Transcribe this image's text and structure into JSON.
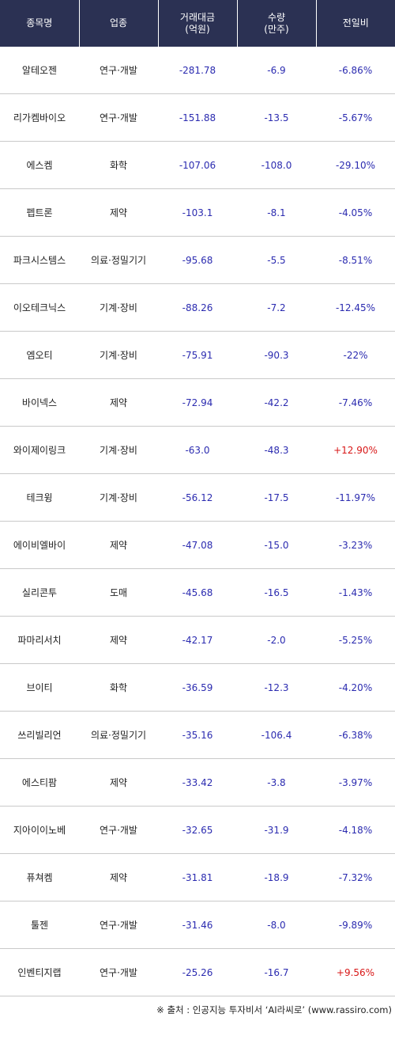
{
  "headers": {
    "name": "종목명",
    "sector": "업종",
    "amount_line1": "거래대금",
    "amount_line2": "(억원)",
    "volume_line1": "수량",
    "volume_line2": "(만주)",
    "change": "전일비"
  },
  "rows": [
    {
      "name": "알테오젠",
      "sector": "연구·개발",
      "amount": "-281.78",
      "volume": "-6.9",
      "change": "-6.86%"
    },
    {
      "name": "리가켐바이오",
      "sector": "연구·개발",
      "amount": "-151.88",
      "volume": "-13.5",
      "change": "-5.67%"
    },
    {
      "name": "에스켐",
      "sector": "화학",
      "amount": "-107.06",
      "volume": "-108.0",
      "change": "-29.10%"
    },
    {
      "name": "펩트론",
      "sector": "제약",
      "amount": "-103.1",
      "volume": "-8.1",
      "change": "-4.05%"
    },
    {
      "name": "파크시스템스",
      "sector": "의료·정밀기기",
      "amount": "-95.68",
      "volume": "-5.5",
      "change": "-8.51%"
    },
    {
      "name": "이오테크닉스",
      "sector": "기계·장비",
      "amount": "-88.26",
      "volume": "-7.2",
      "change": "-12.45%"
    },
    {
      "name": "엠오티",
      "sector": "기계·장비",
      "amount": "-75.91",
      "volume": "-90.3",
      "change": "-22%"
    },
    {
      "name": "바이넥스",
      "sector": "제약",
      "amount": "-72.94",
      "volume": "-42.2",
      "change": "-7.46%"
    },
    {
      "name": "와이제이링크",
      "sector": "기계·장비",
      "amount": "-63.0",
      "volume": "-48.3",
      "change": "+12.90%"
    },
    {
      "name": "테크윙",
      "sector": "기계·장비",
      "amount": "-56.12",
      "volume": "-17.5",
      "change": "-11.97%"
    },
    {
      "name": "에이비엘바이",
      "sector": "제약",
      "amount": "-47.08",
      "volume": "-15.0",
      "change": "-3.23%"
    },
    {
      "name": "실리콘투",
      "sector": "도매",
      "amount": "-45.68",
      "volume": "-16.5",
      "change": "-1.43%"
    },
    {
      "name": "파마리서치",
      "sector": "제약",
      "amount": "-42.17",
      "volume": "-2.0",
      "change": "-5.25%"
    },
    {
      "name": "브이티",
      "sector": "화학",
      "amount": "-36.59",
      "volume": "-12.3",
      "change": "-4.20%"
    },
    {
      "name": "쓰리빌리언",
      "sector": "의료·정밀기기",
      "amount": "-35.16",
      "volume": "-106.4",
      "change": "-6.38%"
    },
    {
      "name": "에스티팜",
      "sector": "제약",
      "amount": "-33.42",
      "volume": "-3.8",
      "change": "-3.97%"
    },
    {
      "name": "지아이이노베",
      "sector": "연구·개발",
      "amount": "-32.65",
      "volume": "-31.9",
      "change": "-4.18%"
    },
    {
      "name": "퓨쳐켐",
      "sector": "제약",
      "amount": "-31.81",
      "volume": "-18.9",
      "change": "-7.32%"
    },
    {
      "name": "툴젠",
      "sector": "연구·개발",
      "amount": "-31.46",
      "volume": "-8.0",
      "change": "-9.89%"
    },
    {
      "name": "인벤티지랩",
      "sector": "연구·개발",
      "amount": "-25.26",
      "volume": "-16.7",
      "change": "+9.56%"
    }
  ],
  "footer": "※ 출처 : 인공지능 투자비서 ‘AI라씨로’ (www.rassiro.com)",
  "colors": {
    "header_bg": "#2b3153",
    "negative": "#2b2bb0",
    "positive": "#d81818"
  }
}
